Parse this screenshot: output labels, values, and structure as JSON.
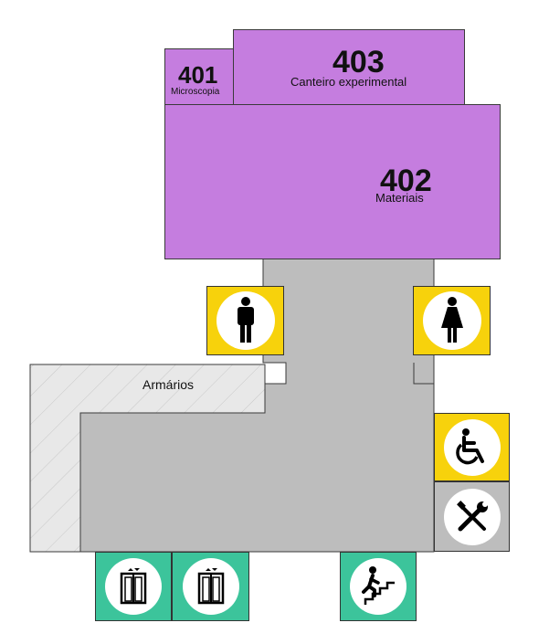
{
  "rooms": [
    {
      "number": "401",
      "name": "Microscopia"
    },
    {
      "number": "403",
      "name": "Canteiro experimental"
    },
    {
      "number": "402",
      "name": "Materiais"
    }
  ],
  "lockers": {
    "label": "Armários"
  },
  "icons": {
    "mens_restroom": "man-icon",
    "womens_restroom": "woman-icon",
    "accessible_restroom": "wheelchair-icon",
    "maintenance": "tools-icon",
    "elevator_1": "elevator-icon",
    "elevator_2": "elevator-icon",
    "stairs": "stairs-icon"
  },
  "colors": {
    "room": "#c57ddf",
    "corridor": "#bdbdbd",
    "lockers": "#e6e6e6",
    "restroom_sign": "#f7d20c",
    "maintenance_sign": "#bdbdbd",
    "circulation_sign": "#3cc49b"
  }
}
